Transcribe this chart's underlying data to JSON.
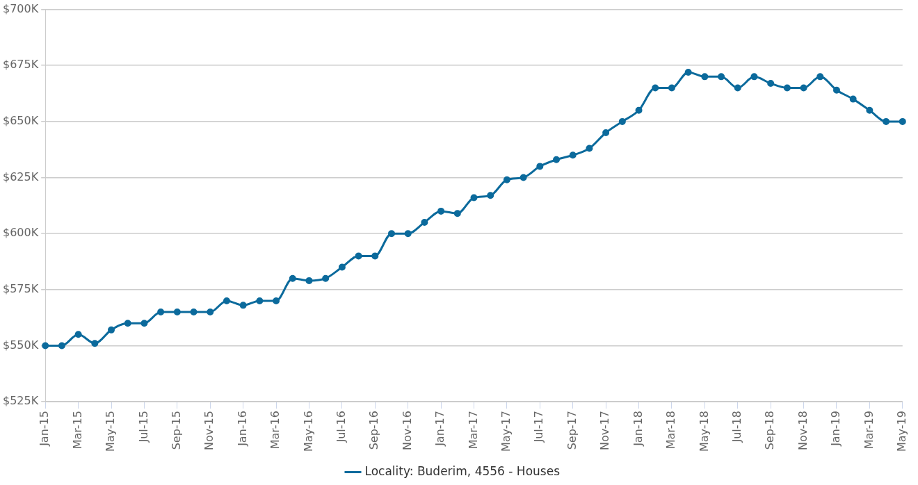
{
  "chart_data": {
    "type": "line",
    "categories": [
      "Jan-15",
      null,
      "Mar-15",
      null,
      "May-15",
      null,
      "Jul-15",
      null,
      "Sep-15",
      null,
      "Nov-15",
      null,
      "Jan-16",
      null,
      "Mar-16",
      null,
      "May-16",
      null,
      "Jul-16",
      null,
      "Sep-16",
      null,
      "Nov-16",
      null,
      "Jan-17",
      null,
      "Mar-17",
      null,
      "May-17",
      null,
      "Jul-17",
      null,
      "Sep-17",
      null,
      "Nov-17",
      null,
      "Jan-18",
      null,
      "Mar-18",
      null,
      "May-18",
      null,
      "Jul-18",
      null,
      "Sep-18",
      null,
      "Nov-18",
      null,
      "Jan-19",
      null,
      "Mar-19",
      null,
      "May-19"
    ],
    "series": [
      {
        "name": "Locality: Buderim, 4556 - Houses",
        "color": "#0b6a9c",
        "values": [
          550000,
          550000,
          555000,
          551000,
          557000,
          560000,
          560000,
          565000,
          565000,
          565000,
          565000,
          570000,
          568000,
          570000,
          570000,
          580000,
          579000,
          580000,
          585000,
          590000,
          590000,
          600000,
          600000,
          605000,
          610000,
          609000,
          616000,
          617000,
          624000,
          625000,
          630000,
          633000,
          635000,
          638000,
          645000,
          650000,
          655000,
          665000,
          665000,
          672000,
          670000,
          670000,
          665000,
          670000,
          667000,
          665000,
          665000,
          670000,
          664000,
          660000,
          655000,
          650000,
          650000
        ]
      }
    ],
    "ylim": [
      525000,
      700000
    ],
    "yticks": [
      {
        "value": 525000,
        "label": "$525K"
      },
      {
        "value": 550000,
        "label": "$550K"
      },
      {
        "value": 575000,
        "label": "$575K"
      },
      {
        "value": 600000,
        "label": "$600K"
      },
      {
        "value": 625000,
        "label": "$625K"
      },
      {
        "value": 650000,
        "label": "$650K"
      },
      {
        "value": 675000,
        "label": "$675K"
      },
      {
        "value": 700000,
        "label": "$700K"
      }
    ],
    "grid": "y",
    "legend": "bottom",
    "marker": "circle"
  }
}
